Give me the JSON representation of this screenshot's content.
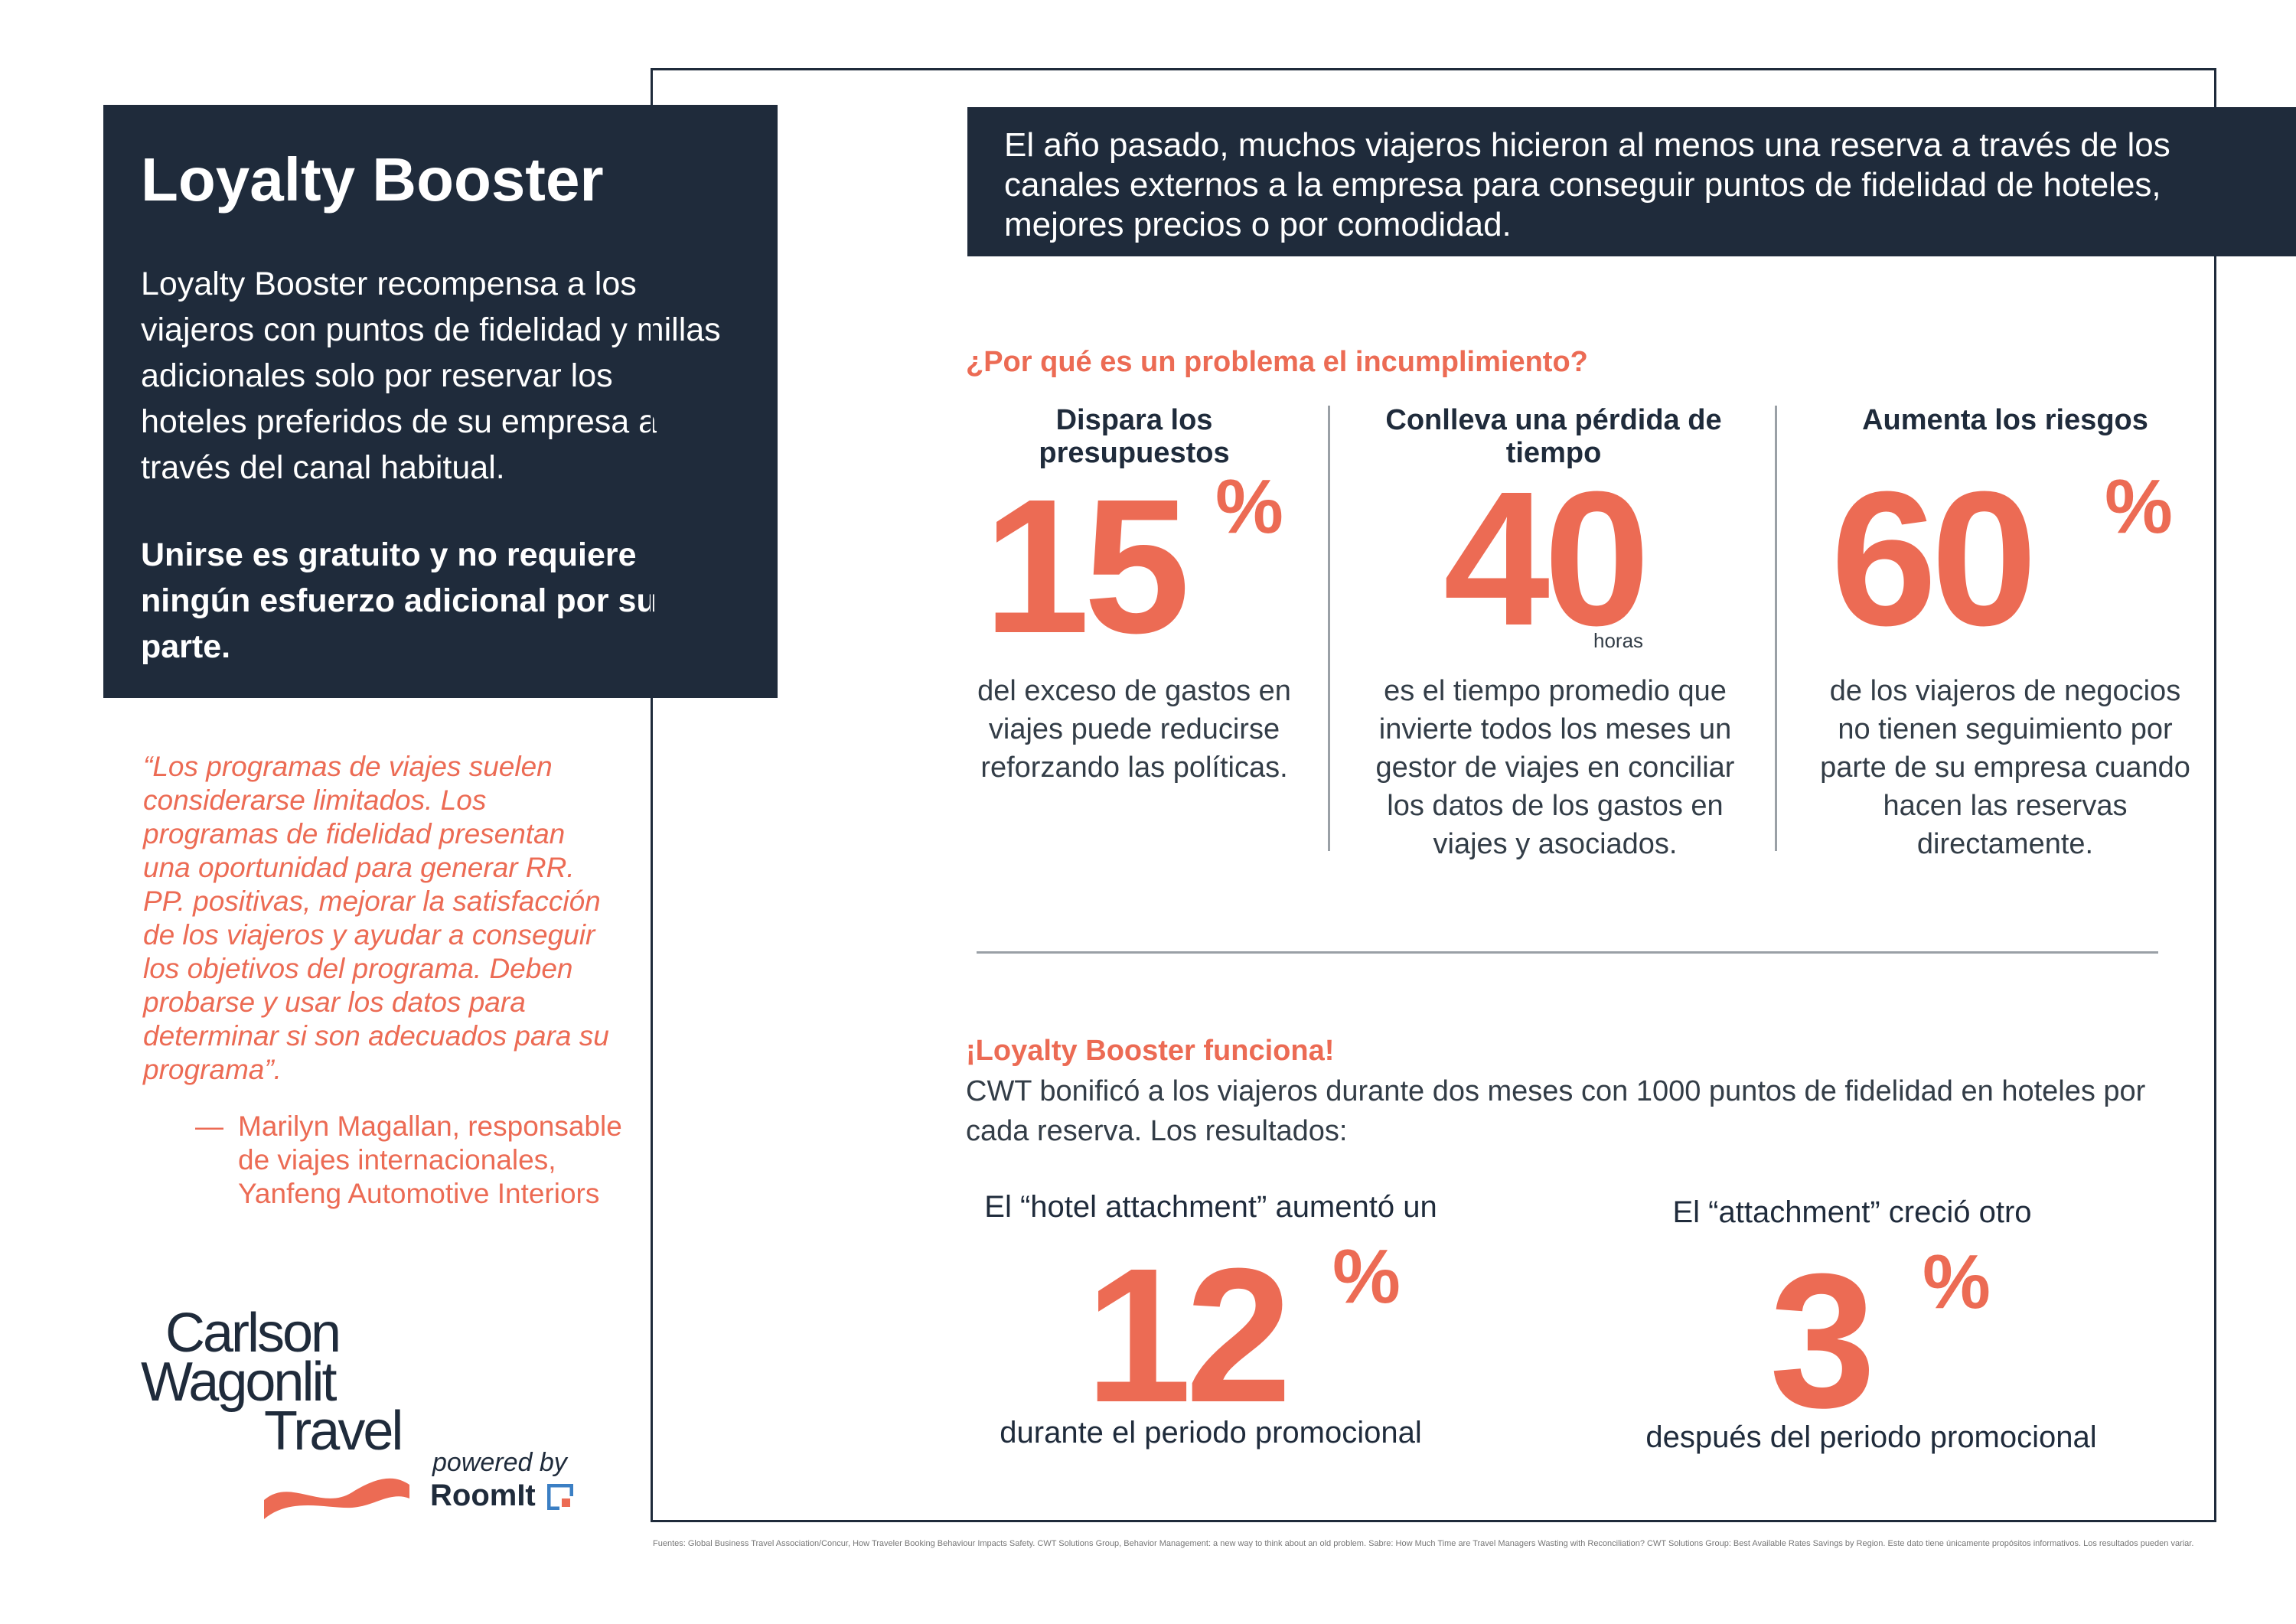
{
  "left_panel": {
    "title": "Loyalty Booster",
    "body": "Loyalty Booster recompensa a los viajeros con puntos de fidelidad y millas adicionales solo por reservar los hoteles preferidos de su empresa a través del canal habitual.",
    "bold_text": "Unirse es gratuito y no requiere ningún esfuerzo adicional por su parte."
  },
  "quote": {
    "text": "“Los programas de viajes suelen considerarse limitados.  Los programas de fidelidad presentan una oportunidad para generar RR. PP. positivas, mejorar la satisfacción de los viajeros y ayudar a conseguir los objetivos del programa.  Deben probarse y usar los datos para determinar si son adecuados para su programa”.",
    "dash": "—",
    "author": "Marilyn Magallan, responsable de viajes internacionales, Yanfeng Automotive Interiors"
  },
  "logo": {
    "line1": "Carlson",
    "line2": "Wagonlit",
    "line3": "Travel",
    "powered_by": "powered by",
    "partner": "RoomIt"
  },
  "banner": {
    "text": "El año pasado, muchos viajeros hicieron al menos una reserva a través de los canales externos a la empresa para conseguir puntos de fidelidad de hoteles, mejores precios o por comodidad."
  },
  "problem": {
    "heading": "¿Por qué es un problema el incumplimiento?",
    "columns": [
      {
        "title": "Dispara los presupuestos",
        "number": "15",
        "unit": "%",
        "text": "del exceso de gastos en viajes puede reducirse reforzando las políticas."
      },
      {
        "title": "Conlleva una pérdida de tiempo",
        "number": "40",
        "unit": "horas",
        "text": "es el tiempo promedio que invierte todos los meses un gestor de viajes en conciliar los datos de los gastos en viajes y asociados."
      },
      {
        "title": "Aumenta los riesgos",
        "number": "60",
        "unit": "%",
        "text": "de los viajeros de negocios no tienen seguimiento por parte de su empresa cuando hacen las reservas directamente."
      }
    ]
  },
  "works": {
    "heading": "¡Loyalty Booster funciona!",
    "text": "CWT bonificó a los viajeros durante dos meses con 1000 puntos de fidelidad en hoteles por cada reserva. Los resultados:",
    "results": [
      {
        "label": "El “hotel attachment” aumentó un",
        "number": "12",
        "unit": "%",
        "sub": "durante el periodo promocional"
      },
      {
        "label": "El “attachment” creció otro",
        "number": "3",
        "unit": "%",
        "sub": "después del periodo promocional"
      }
    ]
  },
  "footnote": "Fuentes: Global Business Travel Association/Concur, How Traveler Booking Behaviour Impacts Safety. CWT Solutions Group, Behavior Management: a new way to think about an old problem. Sabre: How Much Time are Travel Managers Wasting with Reconciliation? CWT Solutions Group: Best Available Rates Savings by Region. Este dato tiene únicamente propósitos informativos. Los resultados pueden variar.",
  "colors": {
    "navy": "#1f2b3b",
    "accent": "#ec6b54"
  }
}
